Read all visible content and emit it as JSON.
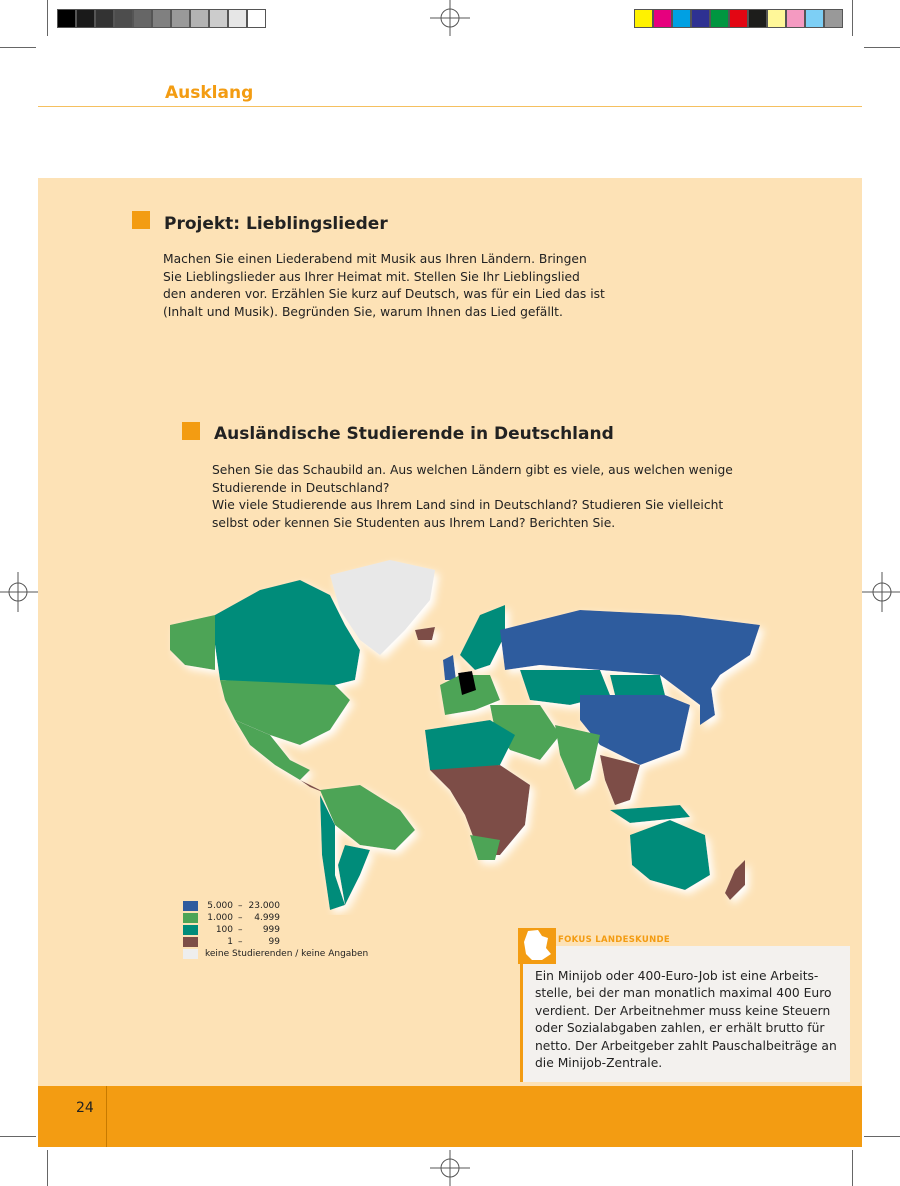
{
  "print_marks": {
    "grayscale": [
      "#000000",
      "#1a1a1a",
      "#333333",
      "#4d4d4d",
      "#666666",
      "#808080",
      "#999999",
      "#b3b3b3",
      "#cccccc",
      "#e6e6e6",
      "#ffffff"
    ],
    "colors": [
      "#fff200",
      "#e6007e",
      "#00a0e3",
      "#2e3192",
      "#009640",
      "#e30613",
      "#1d1d1b",
      "#fff799",
      "#f49ac1",
      "#7dcff5",
      "#999999"
    ]
  },
  "header": {
    "title": "Ausklang",
    "accent": "#f39c12"
  },
  "section1": {
    "title": "Projekt: Lieblingslieder",
    "lines": [
      "Machen Sie einen Liederabend mit Musik aus Ihren Ländern. Bringen",
      "Sie Lieblingslieder aus Ihrer Heimat mit. Stellen Sie Ihr Lieblingslied",
      "den anderen vor. Erzählen Sie kurz auf Deutsch, was für ein Lied das ist",
      "(Inhalt und Musik). Begründen Sie, warum Ihnen das Lied gefällt."
    ]
  },
  "section2": {
    "title": "Ausländische Studierende in Deutschland",
    "lines": [
      "Sehen Sie das Schaubild an. Aus welchen Ländern gibt es viele, aus welchen wenige",
      "Studierende in Deutschland?",
      "Wie viele Studierende aus Ihrem Land sind in Deutschland? Studieren Sie vielleicht",
      "selbst oder kennen Sie Studenten aus Ihrem Land? Berichten Sie."
    ]
  },
  "map": {
    "legend": [
      {
        "from": "5.000",
        "to": "23.000",
        "color": "#2f5b9e"
      },
      {
        "from": "1.000",
        "to": "4.999",
        "color": "#4da456"
      },
      {
        "from": "100",
        "to": "999",
        "color": "#008c7a"
      },
      {
        "from": "1",
        "to": "99",
        "color": "#7d4e47"
      },
      {
        "label": "keine Studierenden / keine Angaben",
        "color": "#eeeeee"
      }
    ],
    "germany_color": "#000000"
  },
  "fokus": {
    "label": "FOKUS LANDESKUNDE",
    "lines": [
      "Ein Minijob oder 400-Euro-Job ist eine Arbeits-",
      "stelle, bei der man monatlich maximal 400 Euro",
      "verdient. Der Arbeitnehmer muss keine Steuern",
      "oder Sozialabgaben zahlen, er erhält brutto für",
      "netto. Der Arbeitgeber zahlt Pauschalbeiträge an",
      "die Minijob-Zentrale."
    ]
  },
  "footer": {
    "page_number": "24"
  }
}
